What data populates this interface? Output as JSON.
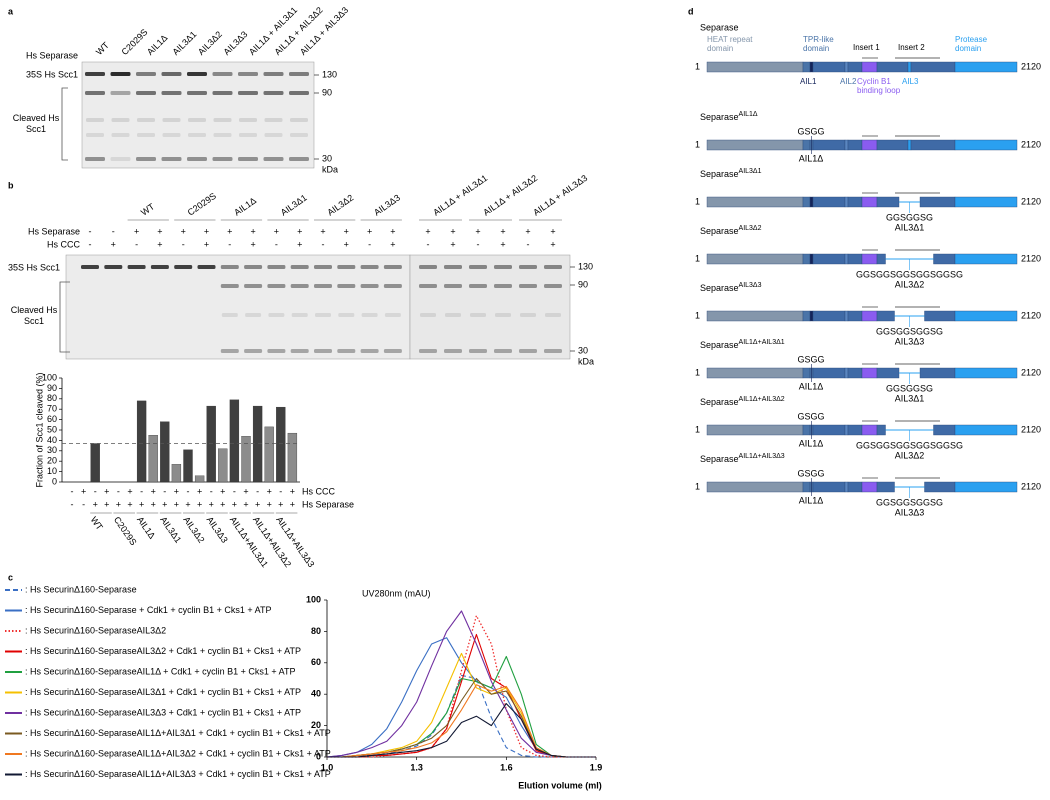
{
  "figure": {
    "panel_labels": [
      "a",
      "b",
      "c",
      "d"
    ],
    "panel_a": {
      "lane_header": "Hs Separase",
      "lanes": [
        "WT",
        "C2029S",
        "AIL1Δ",
        "AIL3Δ1",
        "AIL3Δ2",
        "AIL3Δ3",
        "AIL1Δ + AIL3Δ1",
        "AIL1Δ + AIL3Δ2",
        "AIL1Δ + AIL3Δ3"
      ],
      "band_label": "35S Hs Scc1",
      "cleaved_label": "Cleaved Hs Scc1",
      "markers": [
        "130",
        "90",
        "30"
      ],
      "unit": "kDa"
    },
    "panel_b": {
      "groups": [
        "WT",
        "C2029S",
        "AIL1Δ",
        "AIL3Δ1",
        "AIL3Δ2",
        "AIL3Δ3",
        "AIL1Δ + AIL3Δ1",
        "AIL1Δ + AIL3Δ2",
        "AIL1Δ + AIL3Δ3"
      ],
      "separase_label": "Hs Separase",
      "separase_signs": [
        "-",
        "-",
        "+",
        "+",
        "+",
        "+",
        "+",
        "+",
        "+",
        "+",
        "+",
        "+",
        "+",
        "+",
        "+",
        "+",
        "+",
        "+",
        "+",
        "+"
      ],
      "ccc_label": "Hs CCC",
      "ccc_signs": [
        "-",
        "+",
        "-",
        "+",
        "-",
        "+",
        "-",
        "+",
        "-",
        "+",
        "-",
        "+",
        "-",
        "+",
        "-",
        "+",
        "-",
        "+",
        "-",
        "+"
      ],
      "band_label": "35S Hs Scc1",
      "cleaved_label": "Cleaved Hs Scc1",
      "markers": [
        "130",
        "90",
        "30"
      ],
      "unit": "kDa"
    },
    "panel_d": {
      "main": {
        "title": "Separase",
        "start": "1",
        "end": "2120",
        "domains": [
          {
            "label": "HEAT repeat domain",
            "color": "#8496ab"
          },
          {
            "label": "TPR-like domain",
            "color": "#4a74a8"
          },
          {
            "label": "Insert 1",
            "color": "#000000"
          },
          {
            "label": "Insert 2",
            "color": "#000000"
          },
          {
            "label": "Protease domain",
            "color": "#2aa0f0"
          }
        ],
        "features": [
          {
            "label": "AIL1",
            "color": "#14245a"
          },
          {
            "label": "AIL2",
            "color": "#4a74a8"
          },
          {
            "label": "Cyclin B1 binding loop",
            "color": "#8a5cf0"
          },
          {
            "label": "AIL3",
            "color": "#2aa0f0"
          }
        ]
      },
      "constructs": [
        {
          "title": {
            "base": "Separase",
            "sup": "AIL1Δ"
          },
          "start": "1",
          "end": "2120",
          "ail1": {
            "linker": "GSGG",
            "label": "AIL1Δ"
          }
        },
        {
          "title": {
            "base": "Separase",
            "sup": "AIL3Δ1"
          },
          "start": "1",
          "end": "2120",
          "ail3": {
            "linker": "GGSGGSG",
            "label": "AIL3Δ1"
          }
        },
        {
          "title": {
            "base": "Separase",
            "sup": "AIL3Δ2"
          },
          "start": "1",
          "end": "2120",
          "ail3": {
            "linker": "GGSGGSGGSGGSGGSG",
            "label": "AIL3Δ2"
          }
        },
        {
          "title": {
            "base": "Separase",
            "sup": "AIL3Δ3"
          },
          "start": "1",
          "end": "2120",
          "ail3": {
            "linker": "GGSGGSGGSG",
            "label": "AIL3Δ3"
          }
        },
        {
          "title": {
            "base": "Separase",
            "sup": "AIL1Δ+AIL3Δ1"
          },
          "start": "1",
          "end": "2120",
          "ail1": {
            "linker": "GSGG",
            "label": "AIL1Δ"
          },
          "ail3": {
            "linker": "GGSGGSG",
            "label": "AIL3Δ1"
          }
        },
        {
          "title": {
            "base": "Separase",
            "sup": "AIL1Δ+AIL3Δ2"
          },
          "start": "1",
          "end": "2120",
          "ail1": {
            "linker": "GSGG",
            "label": "AIL1Δ"
          },
          "ail3": {
            "linker": "GGSGGSGGSGGSGGSG",
            "label": "AIL3Δ2"
          }
        },
        {
          "title": {
            "base": "Separase",
            "sup": "AIL1Δ+AIL3Δ3"
          },
          "start": "1",
          "end": "2120",
          "ail1": {
            "linker": "GSGG",
            "label": "AIL1Δ"
          },
          "ail3": {
            "linker": "GGSGGSGGSG",
            "label": "AIL3Δ3"
          }
        }
      ]
    }
  },
  "chart_data": [
    {
      "type": "bar",
      "ylabel": "Fraction of Scc1 cleaved (%)",
      "categories": [
        null,
        null,
        null,
        null,
        null,
        null,
        null,
        null,
        null,
        null,
        null,
        null,
        null,
        null,
        null,
        null,
        null,
        null,
        null,
        null
      ],
      "values": [
        0,
        0,
        37,
        0,
        0,
        0,
        78,
        45,
        58,
        17,
        31,
        6,
        73,
        32,
        79,
        44,
        73,
        53,
        72,
        47
      ],
      "colors": [
        "#404040",
        "#8c8c8c",
        "#404040",
        "#8c8c8c",
        "#404040",
        "#8c8c8c",
        "#404040",
        "#8c8c8c",
        "#404040",
        "#8c8c8c",
        "#404040",
        "#8c8c8c",
        "#404040",
        "#8c8c8c",
        "#404040",
        "#8c8c8c",
        "#404040",
        "#8c8c8c",
        "#404040",
        "#8c8c8c"
      ],
      "ylim": [
        0,
        100
      ],
      "yticks": [
        0,
        10,
        20,
        30,
        40,
        50,
        60,
        70,
        80,
        90,
        100
      ],
      "reference_line": 37,
      "rows": [
        {
          "label": "Hs CCC",
          "signs": [
            "-",
            "+",
            "-",
            "+",
            "-",
            "+",
            "-",
            "+",
            "-",
            "+",
            "-",
            "+",
            "-",
            "+",
            "-",
            "+",
            "-",
            "+",
            "-",
            "+"
          ]
        },
        {
          "label": "Hs Separase",
          "signs": [
            "-",
            "-",
            "+",
            "+",
            "+",
            "+",
            "+",
            "+",
            "+",
            "+",
            "+",
            "+",
            "+",
            "+",
            "+",
            "+",
            "+",
            "+",
            "+",
            "+"
          ]
        }
      ],
      "groups": [
        "WT",
        "C2029S",
        "AIL1Δ",
        "AIL3Δ1",
        "AIL3Δ2",
        "AIL3Δ3",
        "AIL1Δ+AIL3Δ1",
        "AIL1Δ+AIL3Δ2",
        "AIL1Δ+AIL3Δ3"
      ]
    },
    {
      "type": "line",
      "ylabel": "UV280nm (mAU)",
      "xlabel": "Elution volume (ml)",
      "x": [
        1,
        1.05,
        1.1,
        1.15,
        1.2,
        1.25,
        1.3,
        1.35,
        1.4,
        1.45,
        1.5,
        1.55,
        1.6,
        1.65,
        1.7,
        1.75,
        1.8,
        1.85,
        1.9
      ],
      "xlim": [
        1,
        1.9
      ],
      "xticks": [
        {
          "value": 1,
          "label": "1.0"
        },
        1.3,
        1.6,
        1.9
      ],
      "ylim": [
        0,
        100
      ],
      "yticks": [
        0,
        20,
        40,
        60,
        80,
        100
      ],
      "series": [
        {
          "name": ": Hs SecurinΔ160-Separase",
          "color": "#3a6fc4",
          "dash": "dashed",
          "values": [
            0,
            0,
            1,
            1,
            2,
            4,
            7,
            14,
            28,
            52,
            50,
            25,
            6,
            1,
            0,
            0,
            0,
            0,
            0
          ]
        },
        {
          "name": ": Hs SecurinΔ160-Separase + Cdk1 + cyclin B1 + Cks1 + ATP",
          "color": "#3a6fc4",
          "dash": "solid",
          "values": [
            0,
            1,
            3,
            8,
            18,
            35,
            55,
            72,
            76,
            60,
            48,
            44,
            38,
            20,
            5,
            1,
            0,
            0,
            0
          ]
        },
        {
          "name": ": Hs SecurinΔ160-SeparaseAIL3Δ2",
          "color": "#f03030",
          "dash": "dotted",
          "values": [
            0,
            0,
            0,
            0,
            1,
            2,
            3,
            6,
            18,
            55,
            90,
            72,
            30,
            6,
            1,
            0,
            0,
            0,
            0
          ]
        },
        {
          "name": ": Hs SecurinΔ160-SeparaseAIL3Δ2 + Cdk1 + cyclin B1 + Cks1 + ATP",
          "color": "#e00000",
          "dash": "solid",
          "values": [
            0,
            0,
            0,
            1,
            1,
            2,
            3,
            6,
            18,
            48,
            78,
            50,
            44,
            24,
            4,
            1,
            0,
            0,
            0
          ]
        },
        {
          "name": ": Hs SecurinΔ160-SeparaseAIL1Δ + Cdk1 + cyclin B1 + Cks1 + ATP",
          "color": "#20a040",
          "dash": "solid",
          "values": [
            0,
            0,
            1,
            2,
            3,
            5,
            8,
            15,
            28,
            50,
            48,
            44,
            64,
            40,
            8,
            1,
            0,
            0,
            0
          ]
        },
        {
          "name": ": Hs SecurinΔ160-SeparaseAIL3Δ1 + Cdk1 + cyclin B1 + Cks1 + ATP",
          "color": "#f5c000",
          "dash": "solid",
          "values": [
            0,
            0,
            1,
            2,
            4,
            6,
            10,
            22,
            44,
            66,
            44,
            40,
            44,
            28,
            5,
            1,
            0,
            0,
            0
          ]
        },
        {
          "name": ": Hs SecurinΔ160-SeparaseAIL3Δ3 + Cdk1 + cyclin B1 + Cks1 + ATP",
          "color": "#7030a0",
          "dash": "solid",
          "values": [
            0,
            1,
            3,
            6,
            10,
            20,
            35,
            58,
            80,
            93,
            72,
            48,
            30,
            12,
            3,
            1,
            0,
            0,
            0
          ]
        },
        {
          "name": ": Hs SecurinΔ160-SeparaseAIL1Δ+AIL3Δ1 + Cdk1 + cyclin B1 + Cks1 + ATP",
          "color": "#7a5a20",
          "dash": "solid",
          "values": [
            0,
            0,
            1,
            2,
            3,
            5,
            8,
            12,
            20,
            36,
            50,
            40,
            42,
            26,
            5,
            1,
            0,
            0,
            0
          ]
        },
        {
          "name": ": Hs SecurinΔ160-SeparaseAIL1Δ+AIL3Δ2 + Cdk1 + cyclin B1 + Cks1 + ATP",
          "color": "#f07820",
          "dash": "solid",
          "values": [
            0,
            0,
            1,
            2,
            3,
            4,
            6,
            9,
            16,
            30,
            46,
            42,
            45,
            30,
            6,
            1,
            0,
            0,
            0
          ]
        },
        {
          "name": ": Hs SecurinΔ160-SeparaseAIL1Δ+AIL3Δ3 + Cdk1 + cyclin B1 + Cks1 + ATP",
          "color": "#111833",
          "dash": "solid",
          "values": [
            0,
            0,
            0,
            1,
            2,
            3,
            4,
            6,
            10,
            22,
            26,
            20,
            34,
            24,
            5,
            1,
            0,
            0,
            0
          ]
        }
      ]
    }
  ]
}
